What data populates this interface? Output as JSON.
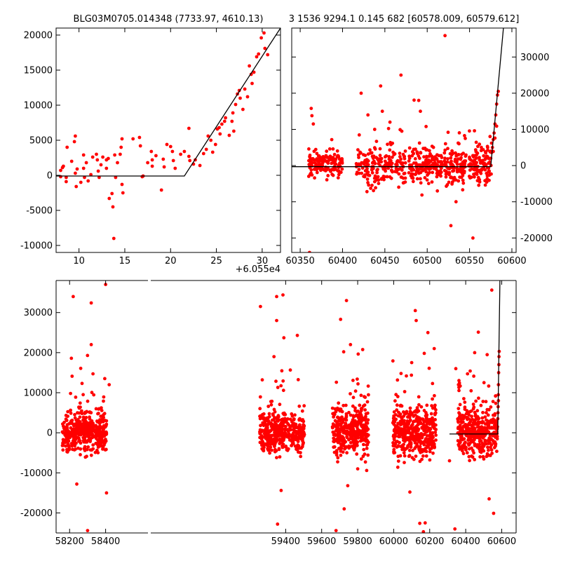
{
  "chart_data": [
    {
      "id": "topleft",
      "type": "scatter",
      "title": "BLG03M0705.014348 (7733.97, 4610.13)",
      "xlim": [
        7.5,
        32
      ],
      "ylim": [
        -11000,
        21000
      ],
      "xticks": [
        10,
        15,
        20,
        25,
        30
      ],
      "yticks": [
        -10000,
        -5000,
        0,
        5000,
        10000,
        15000,
        20000
      ],
      "x_offset_label": "+6.055e4",
      "model_line": [
        [
          7.5,
          -100
        ],
        [
          21.5,
          -100
        ],
        [
          32,
          21000
        ]
      ],
      "points": [
        [
          8,
          -200
        ],
        [
          8,
          700
        ],
        [
          8.3,
          1300
        ],
        [
          8.6,
          -300
        ],
        [
          8.6,
          -900
        ],
        [
          8.7,
          4000
        ],
        [
          9.5,
          4800
        ],
        [
          9.6,
          5600
        ],
        [
          9.6,
          300
        ],
        [
          9.7,
          -1600
        ],
        [
          9.8,
          900
        ],
        [
          10.5,
          1000
        ],
        [
          10.5,
          2900
        ],
        [
          10.6,
          -300
        ],
        [
          10.8,
          1800
        ],
        [
          11,
          -800
        ],
        [
          11.3,
          100
        ],
        [
          11.9,
          3000
        ],
        [
          12,
          2200
        ],
        [
          12.1,
          600
        ],
        [
          12.2,
          -300
        ],
        [
          12.6,
          2600
        ],
        [
          13,
          2200
        ],
        [
          13,
          1000
        ],
        [
          13.3,
          -3300
        ],
        [
          13.6,
          -2600
        ],
        [
          13.7,
          -4500
        ],
        [
          13.8,
          -9000
        ],
        [
          13.9,
          2900
        ],
        [
          14,
          -300
        ],
        [
          14.5,
          3000
        ],
        [
          14.6,
          4000
        ],
        [
          14.7,
          5200
        ],
        [
          14.7,
          -1300
        ],
        [
          14.8,
          -2500
        ],
        [
          16.6,
          5400
        ],
        [
          16.7,
          4200
        ],
        [
          17,
          -100
        ],
        [
          17.9,
          3400
        ],
        [
          18,
          1300
        ],
        [
          18,
          2200
        ],
        [
          19,
          -2100
        ],
        [
          19.2,
          2300
        ],
        [
          19.3,
          1200
        ],
        [
          19.6,
          4400
        ],
        [
          20,
          4100
        ],
        [
          20.3,
          2100
        ],
        [
          20.5,
          1000
        ],
        [
          21.5,
          3400
        ],
        [
          22,
          6700
        ],
        [
          22,
          2700
        ],
        [
          22.5,
          1600
        ],
        [
          22.7,
          2200
        ],
        [
          23.2,
          1400
        ],
        [
          23.9,
          3700
        ],
        [
          24.1,
          5600
        ],
        [
          24.4,
          5000
        ],
        [
          24.6,
          3300
        ],
        [
          25.1,
          6600
        ],
        [
          25.4,
          5900
        ],
        [
          25.6,
          7300
        ],
        [
          25.9,
          7700
        ],
        [
          26,
          8200
        ],
        [
          26.4,
          5700
        ],
        [
          26.7,
          7700
        ],
        [
          26.9,
          6300
        ],
        [
          27.1,
          10100
        ],
        [
          27.3,
          11600
        ],
        [
          27.5,
          12100
        ],
        [
          27.6,
          11000
        ],
        [
          27.9,
          9400
        ],
        [
          28.1,
          12300
        ],
        [
          28.4,
          11200
        ],
        [
          28.6,
          15600
        ],
        [
          28.9,
          13100
        ],
        [
          29.1,
          14700
        ],
        [
          29.4,
          16900
        ],
        [
          29.6,
          17300
        ],
        [
          29.9,
          19600
        ],
        [
          30.2,
          20300
        ],
        [
          30.6,
          17200
        ],
        [
          30.3,
          18100
        ],
        [
          28.8,
          14400
        ],
        [
          26.8,
          8900
        ],
        [
          25.3,
          6800
        ],
        [
          24.9,
          4400
        ],
        [
          23.6,
          3100
        ],
        [
          22.1,
          2100
        ],
        [
          21.1,
          3000
        ],
        [
          20.2,
          3400
        ],
        [
          18.4,
          2800
        ],
        [
          17.5,
          1800
        ],
        [
          16.9,
          -200
        ],
        [
          15.9,
          5200
        ],
        [
          14.2,
          1800
        ],
        [
          13.2,
          2400
        ],
        [
          12.4,
          1500
        ],
        [
          11.5,
          2600
        ],
        [
          10.2,
          -1000
        ],
        [
          9.2,
          2000
        ],
        [
          8.2,
          1100
        ]
      ]
    },
    {
      "id": "topright",
      "type": "scatter",
      "title": "3 1536 9294.1 0.145 682 [60578.009, 60579.612]",
      "xlim": [
        60340,
        60605
      ],
      "ylim": [
        -24000,
        38000
      ],
      "xticks": [
        60350,
        60400,
        60450,
        60500,
        60550,
        60600
      ],
      "yticks": [
        -20000,
        -10000,
        0,
        10000,
        20000,
        30000
      ],
      "model_line": [
        [
          60340,
          -300
        ],
        [
          60575,
          -300
        ],
        [
          60590,
          38000
        ]
      ],
      "segments": [
        {
          "xmin": 60360,
          "xmax": 60400,
          "sd": 1800,
          "n": 140
        },
        {
          "xmin": 60415,
          "xmax": 60475,
          "sd": 2600,
          "n": 180
        },
        {
          "xmin": 60478,
          "xmax": 60518,
          "sd": 2400,
          "n": 160
        },
        {
          "xmin": 60520,
          "xmax": 60546,
          "sd": 3200,
          "n": 110
        },
        {
          "xmin": 60548,
          "xmax": 60576,
          "sd": 2600,
          "n": 110
        }
      ],
      "outliers": [
        [
          60361,
          -24000
        ],
        [
          60363,
          15800
        ],
        [
          60422,
          20000
        ],
        [
          60425,
          -3000
        ],
        [
          60430,
          14000
        ],
        [
          60445,
          22000
        ],
        [
          60447,
          15000
        ],
        [
          60469,
          25000
        ],
        [
          60490,
          18000
        ],
        [
          60492,
          15000
        ],
        [
          60521,
          35900
        ],
        [
          60528,
          -16600
        ],
        [
          60554,
          -20000
        ],
        [
          60562,
          -4500
        ],
        [
          60545,
          7500
        ],
        [
          60438,
          10000
        ],
        [
          60456,
          12000
        ],
        [
          60512,
          -7000
        ],
        [
          60534,
          -10000
        ],
        [
          60470,
          9500
        ]
      ],
      "rise_points": [
        [
          60574,
          1000
        ],
        [
          60575,
          2000
        ],
        [
          60576,
          3600
        ],
        [
          60577,
          5000
        ],
        [
          60578,
          7200
        ],
        [
          60579,
          9000
        ],
        [
          60580,
          11500
        ],
        [
          60581,
          14000
        ],
        [
          60582,
          17000
        ],
        [
          60583,
          19500
        ],
        [
          60584,
          20500
        ],
        [
          60578,
          3900
        ],
        [
          60580,
          7600
        ],
        [
          60582,
          10900
        ],
        [
          60576,
          6200
        ]
      ]
    },
    {
      "id": "bottom",
      "type": "scatter",
      "xlim": [
        58125,
        60680
      ],
      "ylim": [
        -25000,
        38000
      ],
      "axis_gap": [
        58410,
        58690
      ],
      "xticks": [
        58200,
        58400,
        59400,
        59600,
        59800,
        60000,
        60200,
        60400,
        60600
      ],
      "yticks": [
        -20000,
        -10000,
        0,
        10000,
        20000,
        30000
      ],
      "model_line": [
        [
          60310,
          -300
        ],
        [
          60578,
          -300
        ],
        [
          60590,
          38000
        ]
      ],
      "segments": [
        {
          "xmin": 58160,
          "xmax": 58405,
          "sd": 2600,
          "n": 420
        },
        {
          "xmin": 59255,
          "xmax": 59505,
          "sd": 2400,
          "n": 420
        },
        {
          "xmin": 59660,
          "xmax": 59860,
          "sd": 3000,
          "n": 380
        },
        {
          "xmin": 59995,
          "xmax": 60235,
          "sd": 3300,
          "n": 430
        },
        {
          "xmin": 60355,
          "xmax": 60576,
          "sd": 2900,
          "n": 380
        }
      ],
      "outliers": [
        [
          58220,
          34000
        ],
        [
          58210,
          18600
        ],
        [
          58240,
          -12800
        ],
        [
          58300,
          -24400
        ],
        [
          58320,
          32400
        ],
        [
          58320,
          22000
        ],
        [
          58330,
          14700
        ],
        [
          58400,
          37000
        ],
        [
          58405,
          -15000
        ],
        [
          59260,
          31500
        ],
        [
          59270,
          13200
        ],
        [
          59335,
          19000
        ],
        [
          59350,
          34000
        ],
        [
          59350,
          28000
        ],
        [
          59355,
          -22800
        ],
        [
          59375,
          -14400
        ],
        [
          59385,
          34400
        ],
        [
          59390,
          23700
        ],
        [
          59465,
          24300
        ],
        [
          59680,
          -24400
        ],
        [
          59705,
          28300
        ],
        [
          59725,
          -19000
        ],
        [
          59738,
          33000
        ],
        [
          59745,
          -13200
        ],
        [
          59760,
          22000
        ],
        [
          60090,
          -14800
        ],
        [
          60100,
          17500
        ],
        [
          60120,
          30500
        ],
        [
          60125,
          28000
        ],
        [
          60145,
          -22600
        ],
        [
          60165,
          -24700
        ],
        [
          60175,
          -22500
        ],
        [
          60190,
          25000
        ],
        [
          60225,
          21000
        ],
        [
          60340,
          -24000
        ],
        [
          60345,
          16000
        ],
        [
          60360,
          12000
        ],
        [
          60425,
          15400
        ],
        [
          60450,
          20000
        ],
        [
          60470,
          25100
        ],
        [
          60530,
          -16500
        ],
        [
          60545,
          35600
        ],
        [
          60555,
          -20100
        ],
        [
          60480,
          -6000
        ],
        [
          60310,
          -7000
        ],
        [
          59800,
          -9000
        ],
        [
          59850,
          -9400
        ],
        [
          58420,
          12000
        ]
      ],
      "rise_points": [
        [
          60576,
          1500
        ],
        [
          60578,
          3500
        ],
        [
          60580,
          6500
        ],
        [
          60581,
          9500
        ],
        [
          60582,
          12000
        ],
        [
          60583,
          15000
        ],
        [
          60584,
          17000
        ],
        [
          60585,
          19000
        ],
        [
          60586,
          20300
        ],
        [
          60579,
          5000
        ],
        [
          60582,
          8000
        ]
      ]
    }
  ]
}
